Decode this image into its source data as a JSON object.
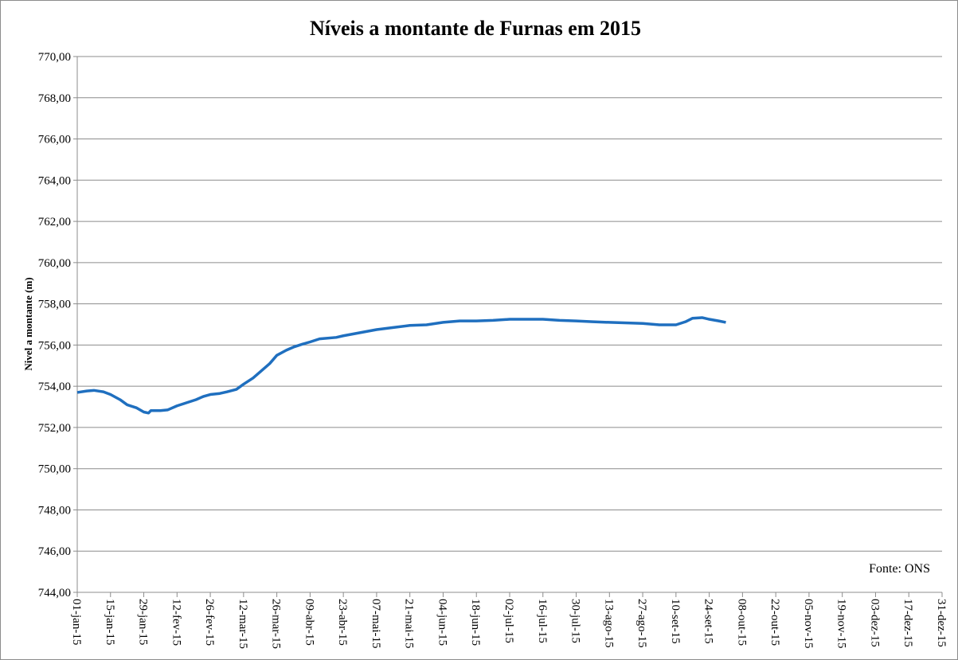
{
  "chart_data": {
    "type": "line",
    "title": "Níveis a montante de Furnas em 2015",
    "y_label": "Nivel a montante  (m)",
    "annotation": "Fonte: ONS",
    "x": [
      "2015-01-01",
      "2015-01-05",
      "2015-01-08",
      "2015-01-12",
      "2015-01-15",
      "2015-01-19",
      "2015-01-22",
      "2015-01-26",
      "2015-01-29",
      "2015-01-31",
      "2015-02-01",
      "2015-02-05",
      "2015-02-08",
      "2015-02-12",
      "2015-02-16",
      "2015-02-20",
      "2015-02-23",
      "2015-02-26",
      "2015-03-02",
      "2015-03-05",
      "2015-03-09",
      "2015-03-12",
      "2015-03-16",
      "2015-03-19",
      "2015-03-23",
      "2015-03-26",
      "2015-03-30",
      "2015-04-02",
      "2015-04-06",
      "2015-04-09",
      "2015-04-13",
      "2015-04-20",
      "2015-04-23",
      "2015-04-30",
      "2015-05-07",
      "2015-05-14",
      "2015-05-21",
      "2015-05-28",
      "2015-06-04",
      "2015-06-11",
      "2015-06-18",
      "2015-06-25",
      "2015-07-02",
      "2015-07-16",
      "2015-07-23",
      "2015-07-30",
      "2015-08-06",
      "2015-08-13",
      "2015-08-27",
      "2015-09-03",
      "2015-09-10",
      "2015-09-14",
      "2015-09-17",
      "2015-09-21",
      "2015-09-24",
      "2015-09-28",
      "2015-10-01"
    ],
    "series": [
      {
        "name": "Nivel a montante",
        "color": "#1f6fbf",
        "values": [
          753.7,
          753.77,
          753.8,
          753.73,
          753.6,
          753.35,
          753.1,
          752.95,
          752.75,
          752.7,
          752.82,
          752.82,
          752.85,
          753.05,
          753.2,
          753.35,
          753.5,
          753.6,
          753.65,
          753.73,
          753.85,
          754.1,
          754.4,
          754.7,
          755.1,
          755.5,
          755.75,
          755.9,
          756.05,
          756.15,
          756.3,
          756.37,
          756.45,
          756.6,
          756.75,
          756.85,
          756.95,
          756.98,
          757.1,
          757.17,
          757.17,
          757.2,
          757.25,
          757.25,
          757.2,
          757.17,
          757.13,
          757.1,
          757.05,
          756.98,
          756.98,
          757.13,
          757.3,
          757.33,
          757.25,
          757.17,
          757.1
        ]
      }
    ],
    "xlim": [
      "2015-01-01",
      "2015-12-31"
    ],
    "xticks": [
      {
        "value": "2015-01-01",
        "label": "01-jan-15"
      },
      {
        "value": "2015-01-15",
        "label": "15-jan-15"
      },
      {
        "value": "2015-01-29",
        "label": "29-jan-15"
      },
      {
        "value": "2015-02-12",
        "label": "12-fev-15"
      },
      {
        "value": "2015-02-26",
        "label": "26-fev-15"
      },
      {
        "value": "2015-03-12",
        "label": "12-mar-15"
      },
      {
        "value": "2015-03-26",
        "label": "26-mar-15"
      },
      {
        "value": "2015-04-09",
        "label": "09-abr-15"
      },
      {
        "value": "2015-04-23",
        "label": "23-abr-15"
      },
      {
        "value": "2015-05-07",
        "label": "07-mai-15"
      },
      {
        "value": "2015-05-21",
        "label": "21-mai-15"
      },
      {
        "value": "2015-06-04",
        "label": "04-jun-15"
      },
      {
        "value": "2015-06-18",
        "label": "18-jun-15"
      },
      {
        "value": "2015-07-02",
        "label": "02-jul-15"
      },
      {
        "value": "2015-07-16",
        "label": "16-jul-15"
      },
      {
        "value": "2015-07-30",
        "label": "30-jul-15"
      },
      {
        "value": "2015-08-13",
        "label": "13-ago-15"
      },
      {
        "value": "2015-08-27",
        "label": "27-ago-15"
      },
      {
        "value": "2015-09-10",
        "label": "10-set-15"
      },
      {
        "value": "2015-09-24",
        "label": "24-set-15"
      },
      {
        "value": "2015-10-08",
        "label": "08-out-15"
      },
      {
        "value": "2015-10-22",
        "label": "22-out-15"
      },
      {
        "value": "2015-11-05",
        "label": "05-nov-15"
      },
      {
        "value": "2015-11-19",
        "label": "19-nov-15"
      },
      {
        "value": "2015-12-03",
        "label": "03-dez-15"
      },
      {
        "value": "2015-12-17",
        "label": "17-dez-15"
      },
      {
        "value": "2015-12-31",
        "label": "31-dez-15"
      }
    ],
    "ylim": [
      744,
      770
    ],
    "yticks": [
      {
        "value": 744,
        "label": "744,00"
      },
      {
        "value": 746,
        "label": "746,00"
      },
      {
        "value": 748,
        "label": "748,00"
      },
      {
        "value": 750,
        "label": "750,00"
      },
      {
        "value": 752,
        "label": "752,00"
      },
      {
        "value": 754,
        "label": "754,00"
      },
      {
        "value": 756,
        "label": "756,00"
      },
      {
        "value": 758,
        "label": "758,00"
      },
      {
        "value": 760,
        "label": "760,00"
      },
      {
        "value": 762,
        "label": "762,00"
      },
      {
        "value": 764,
        "label": "764,00"
      },
      {
        "value": 766,
        "label": "766,00"
      },
      {
        "value": 768,
        "label": "768,00"
      },
      {
        "value": 770,
        "label": "770,00"
      }
    ],
    "grid": true
  }
}
